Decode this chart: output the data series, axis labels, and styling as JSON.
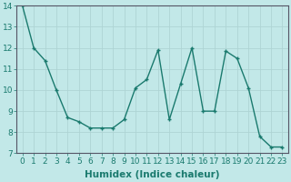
{
  "x": [
    0,
    1,
    2,
    3,
    4,
    5,
    6,
    7,
    8,
    9,
    10,
    11,
    12,
    13,
    14,
    15,
    16,
    17,
    18,
    19,
    20,
    21,
    22,
    23
  ],
  "y": [
    14.0,
    12.0,
    11.4,
    10.0,
    8.7,
    8.5,
    8.2,
    8.2,
    8.2,
    8.6,
    10.1,
    10.5,
    11.9,
    8.6,
    10.3,
    12.0,
    9.0,
    9.0,
    11.85,
    11.5,
    10.1,
    7.8,
    7.3,
    7.3
  ],
  "line_color": "#1a7a6e",
  "marker": "+",
  "bg_color": "#c2e8e8",
  "grid_color": "#aed4d4",
  "xlabel": "Humidex (Indice chaleur)",
  "ylim": [
    7,
    14
  ],
  "xlim_min": -0.5,
  "xlim_max": 23.5,
  "yticks": [
    7,
    8,
    9,
    10,
    11,
    12,
    13,
    14
  ],
  "xticks": [
    0,
    1,
    2,
    3,
    4,
    5,
    6,
    7,
    8,
    9,
    10,
    11,
    12,
    13,
    14,
    15,
    16,
    17,
    18,
    19,
    20,
    21,
    22,
    23
  ],
  "xlabel_fontsize": 7.5,
  "tick_fontsize": 6.5,
  "label_color": "#1a7a6e",
  "spine_color": "#555566",
  "markersize": 3.5,
  "linewidth": 1.0
}
